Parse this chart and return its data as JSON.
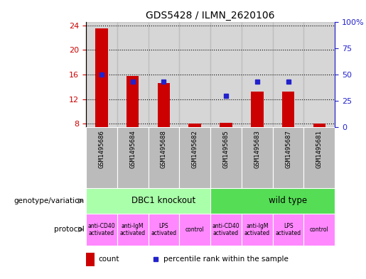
{
  "title": "GDS5428 / ILMN_2620106",
  "samples": [
    "GSM1495686",
    "GSM1495684",
    "GSM1495688",
    "GSM1495682",
    "GSM1495685",
    "GSM1495683",
    "GSM1495687",
    "GSM1495681"
  ],
  "count_values": [
    23.5,
    15.8,
    14.6,
    8.1,
    8.2,
    13.3,
    13.2,
    8.05
  ],
  "percentile_values": [
    50.0,
    43.0,
    43.0,
    null,
    30.0,
    43.0,
    43.0,
    null
  ],
  "ylim_left": [
    7.5,
    24.5
  ],
  "ylim_right": [
    0,
    100
  ],
  "yticks_left": [
    8,
    12,
    16,
    20,
    24
  ],
  "yticks_right": [
    0,
    25,
    50,
    75,
    100
  ],
  "genotype_groups": [
    {
      "label": "DBC1 knockout",
      "start": 0,
      "end": 4,
      "color": "#aaffaa"
    },
    {
      "label": "wild type",
      "start": 4,
      "end": 8,
      "color": "#55dd55"
    }
  ],
  "proto_labels": [
    "anti-CD40\nactivated",
    "anti-IgM\nactivated",
    "LPS\nactivated",
    "control",
    "anti-CD40\nactivated",
    "anti-IgM\nactivated",
    "LPS\nactivated",
    "control"
  ],
  "proto_color": "#ff88ff",
  "bar_color": "#cc0000",
  "dot_color": "#2222cc",
  "bar_width": 0.4,
  "left_axis_color": "#cc0000",
  "right_axis_color": "#2222cc",
  "tick_area_color": "#bbbbbb",
  "right_ytick_labels": [
    "0",
    "25",
    "50",
    "75",
    "100%"
  ]
}
